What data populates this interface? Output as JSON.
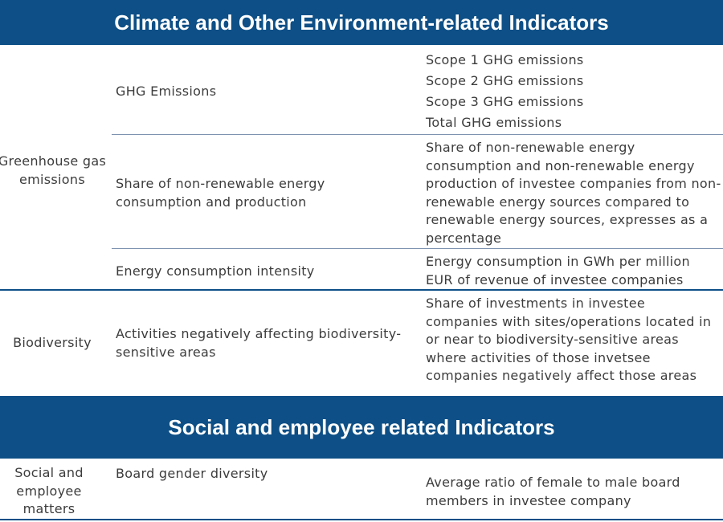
{
  "section1": {
    "title": "Climate and Other Environment-related Indicators",
    "ghg": {
      "category": [
        "Greenhouse gas",
        "emissions"
      ],
      "emissions": {
        "indicator": "GHG Emissions",
        "metrics": [
          "Scope 1 GHG emissions",
          "Scope 2 GHG emissions",
          "Scope 3 GHG emissions",
          "Total GHG emissions"
        ]
      },
      "share": {
        "indicator": [
          "Share of non-renewable energy",
          "consumption and production"
        ],
        "metric": [
          "Share of non-renewable energy",
          "consumption and non-renewable energy",
          "production of investee companies from non-",
          "renewable energy sources compared to",
          "renewable energy sources, expresses as a",
          "percentage"
        ]
      },
      "intensity": {
        "indicator": "Energy consumption intensity",
        "metric": [
          "Energy consumption in GWh per million",
          "EUR of revenue of investee companies"
        ]
      }
    },
    "biodiversity": {
      "category": "Biodiversity",
      "indicator": [
        "Activities negatively affecting biodiversity-",
        "sensitive areas"
      ],
      "metric": [
        "Share of investments in investee",
        "companies with sites/operations located in",
        "or near to biodiversity-sensitive areas",
        "where activities of those invetsee",
        "companies negatively affect those areas"
      ]
    }
  },
  "section2": {
    "title": "Social and employee related Indicators",
    "social": {
      "category": [
        "Social and",
        "employee",
        "matters"
      ],
      "indicator": "Board gender diversity",
      "metric": [
        "Average ratio of female to male board",
        "members in investee company"
      ]
    }
  }
}
